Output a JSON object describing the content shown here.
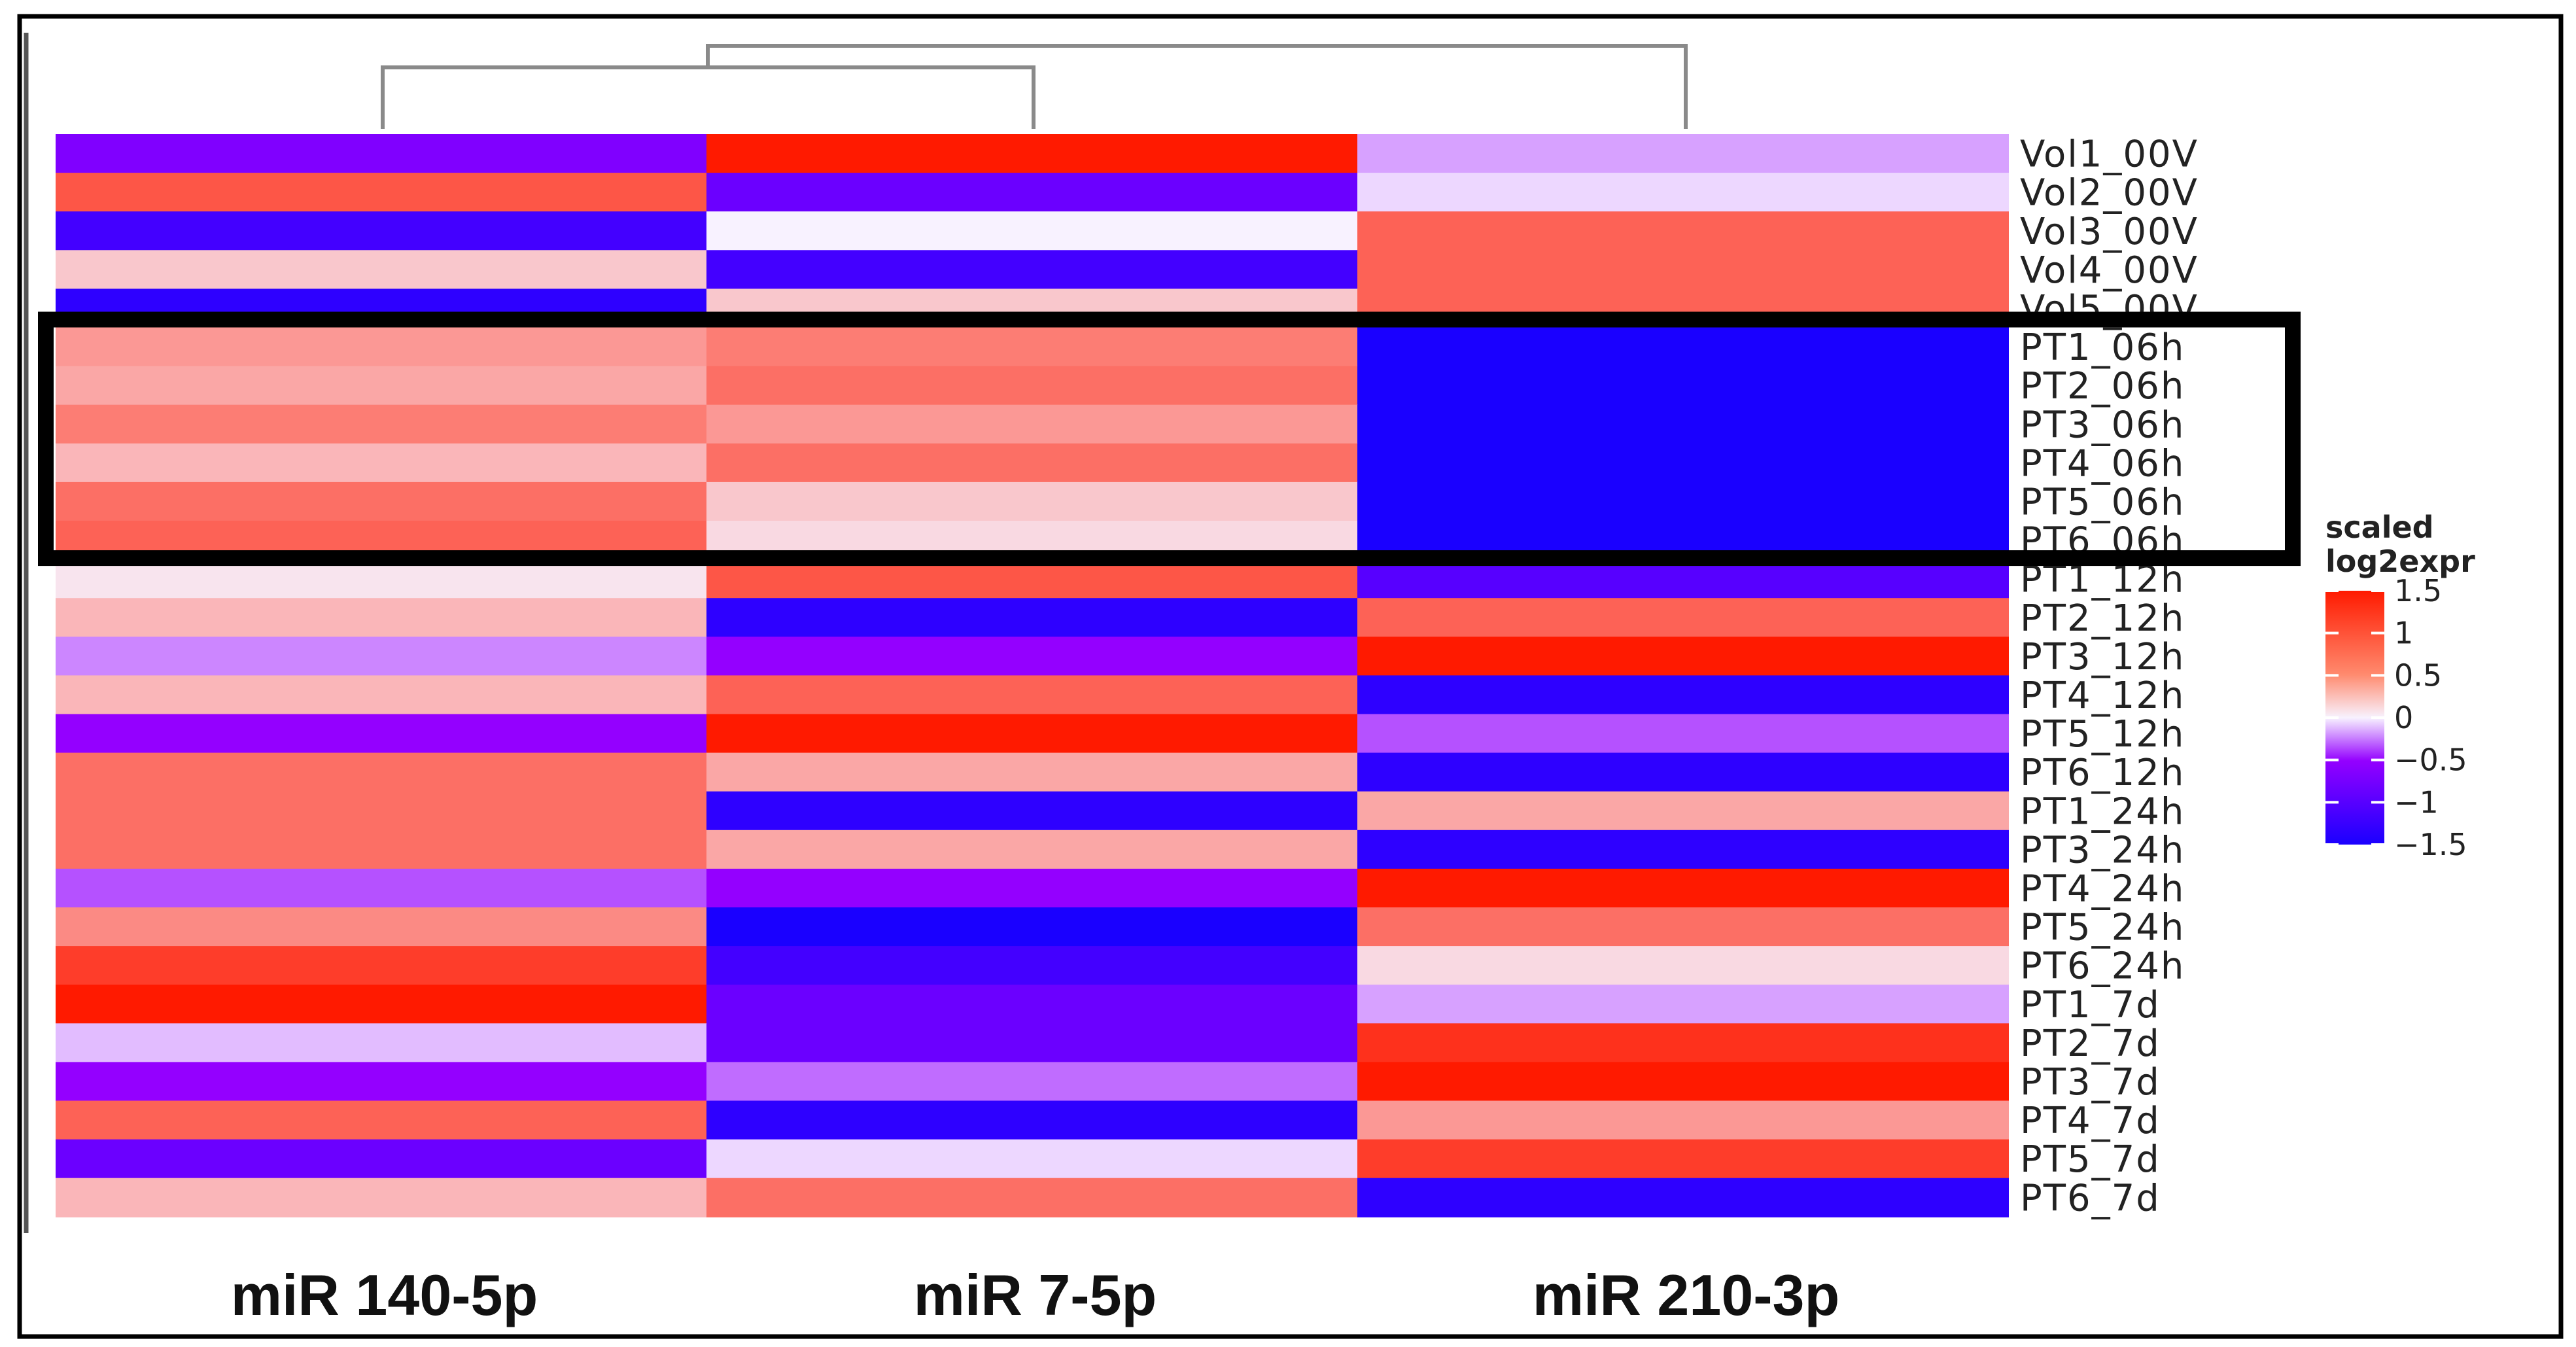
{
  "chart_data": {
    "type": "heatmap",
    "columns": [
      "miR 140-5p",
      "miR 7-5p",
      "miR 210-3p"
    ],
    "rows": [
      "Vol1_00V",
      "Vol2_00V",
      "Vol3_00V",
      "Vol4_00V",
      "Vol5_00V",
      "PT1_06h",
      "PT2_06h",
      "PT3_06h",
      "PT4_06h",
      "PT5_06h",
      "PT6_06h",
      "PT1_12h",
      "PT2_12h",
      "PT3_12h",
      "PT4_12h",
      "PT5_12h",
      "PT6_12h",
      "PT1_24h",
      "PT3_24h",
      "PT4_24h",
      "PT5_24h",
      "PT6_24h",
      "PT1_7d",
      "PT2_7d",
      "PT3_7d",
      "PT4_7d",
      "PT5_7d",
      "PT6_7d"
    ],
    "values": [
      [
        -1.0,
        1.5,
        -0.3
      ],
      [
        1.0,
        -1.1,
        -0.1
      ],
      [
        -1.3,
        0.0,
        0.9
      ],
      [
        0.2,
        -1.3,
        0.9
      ],
      [
        -1.4,
        0.2,
        0.9
      ],
      [
        0.5,
        0.7,
        -1.5
      ],
      [
        0.4,
        0.8,
        -1.5
      ],
      [
        0.7,
        0.5,
        -1.5
      ],
      [
        0.3,
        0.8,
        -1.5
      ],
      [
        0.8,
        0.2,
        -1.5
      ],
      [
        0.9,
        0.1,
        -1.5
      ],
      [
        0.05,
        1.0,
        -1.2
      ],
      [
        0.3,
        -1.4,
        0.9
      ],
      [
        -0.4,
        -0.9,
        1.5
      ],
      [
        0.3,
        0.9,
        -1.4
      ],
      [
        -0.9,
        1.5,
        -0.6
      ],
      [
        0.8,
        0.4,
        -1.4
      ],
      [
        0.8,
        -1.4,
        0.4
      ],
      [
        0.8,
        0.4,
        -1.4
      ],
      [
        -0.6,
        -0.9,
        1.5
      ],
      [
        0.6,
        -1.5,
        0.8
      ],
      [
        1.2,
        -1.3,
        0.1
      ],
      [
        1.5,
        -1.1,
        -0.3
      ],
      [
        -0.2,
        -1.1,
        1.3
      ],
      [
        -0.9,
        -0.5,
        1.5
      ],
      [
        0.9,
        -1.4,
        0.5
      ],
      [
        -1.1,
        -0.1,
        1.2
      ],
      [
        0.3,
        0.8,
        -1.4
      ]
    ],
    "color_scale": {
      "low": "#1a00ff",
      "mid_low": "#9400ff",
      "mid": "#f8f2ff",
      "high": "#ff1a00",
      "range": [
        -1.5,
        1.5
      ]
    },
    "legend": {
      "title_line1": "scaled",
      "title_line2": "log2expr",
      "ticks": [
        1.5,
        1,
        0.5,
        0,
        -0.5,
        -1,
        -1.5
      ],
      "tick_labels": [
        "1.5",
        "1",
        "0.5",
        "0",
        "−0.5",
        "−1",
        "−1.5"
      ],
      "placement": "right"
    },
    "dendrogram": "columns",
    "highlight": {
      "from_row": "PT1_06h",
      "to_row": "PT6_06h"
    }
  }
}
